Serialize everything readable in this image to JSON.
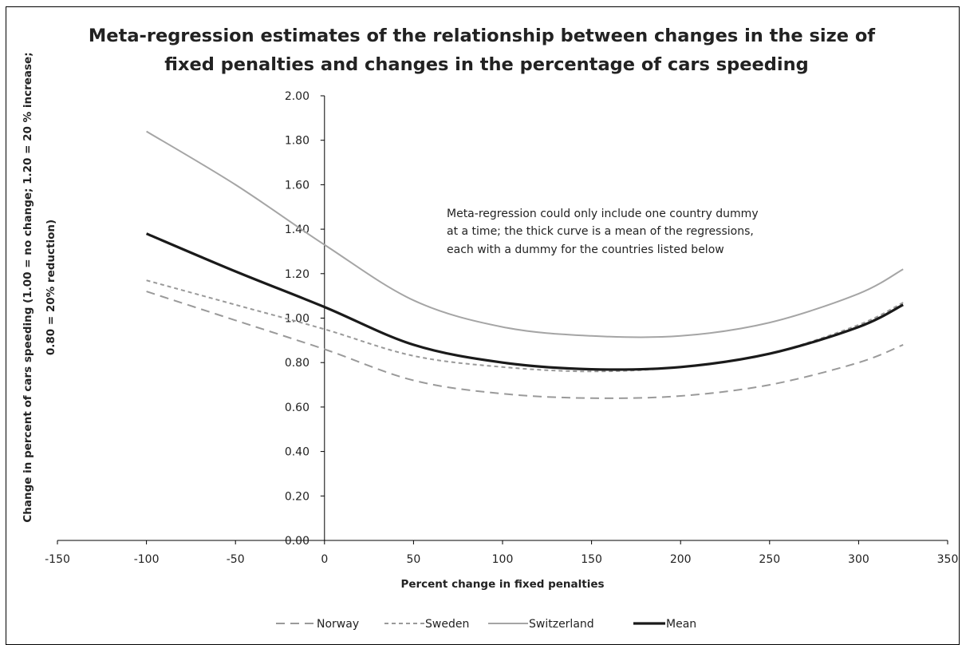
{
  "chart_data": {
    "type": "line",
    "title_lines": [
      "Meta-regression estimates of the relationship between changes in the size of",
      "fixed penalties and changes in the percentage of cars speeding"
    ],
    "xlabel": "Percent change in fixed penalties",
    "ylabel_lines": [
      "Change in percent of cars speeding (1.00 = no change; 1.20 = 20 % increase;",
      "0.80 = 20% reduction)"
    ],
    "xlim": [
      -150,
      350
    ],
    "ylim": [
      0,
      2
    ],
    "x_ticks": [
      "-150",
      "-100",
      "-50",
      "0",
      "50",
      "100",
      "150",
      "200",
      "250",
      "300",
      "350"
    ],
    "y_ticks": [
      "0.00",
      "0.20",
      "0.40",
      "0.60",
      "0.80",
      "1.00",
      "1.20",
      "1.40",
      "1.60",
      "1.80",
      "2.00"
    ],
    "annotation_lines": [
      "Meta-regression could only include one country dummy",
      "at a time; the thick curve is a mean of the regressions,",
      "each with a dummy for the countries listed below"
    ],
    "legend_position": "bottom",
    "x": [
      -100,
      -50,
      0,
      50,
      100,
      150,
      200,
      250,
      300,
      325
    ],
    "series": [
      {
        "name": "Norway",
        "style": "long-dash",
        "color": "#9a9a9a",
        "values": [
          1.12,
          0.99,
          0.86,
          0.72,
          0.66,
          0.64,
          0.65,
          0.7,
          0.8,
          0.88
        ]
      },
      {
        "name": "Sweden",
        "style": "short-dash",
        "color": "#9a9a9a",
        "values": [
          1.17,
          1.06,
          0.95,
          0.83,
          0.78,
          0.76,
          0.78,
          0.84,
          0.97,
          1.07
        ]
      },
      {
        "name": "Switzerland",
        "style": "solid",
        "color": "#a5a5a5",
        "values": [
          1.84,
          1.6,
          1.33,
          1.08,
          0.96,
          0.92,
          0.92,
          0.98,
          1.11,
          1.22
        ]
      },
      {
        "name": "Mean",
        "style": "thick",
        "color": "#1a1a1a",
        "values": [
          1.38,
          1.21,
          1.05,
          0.88,
          0.8,
          0.77,
          0.78,
          0.84,
          0.96,
          1.06
        ]
      }
    ]
  }
}
